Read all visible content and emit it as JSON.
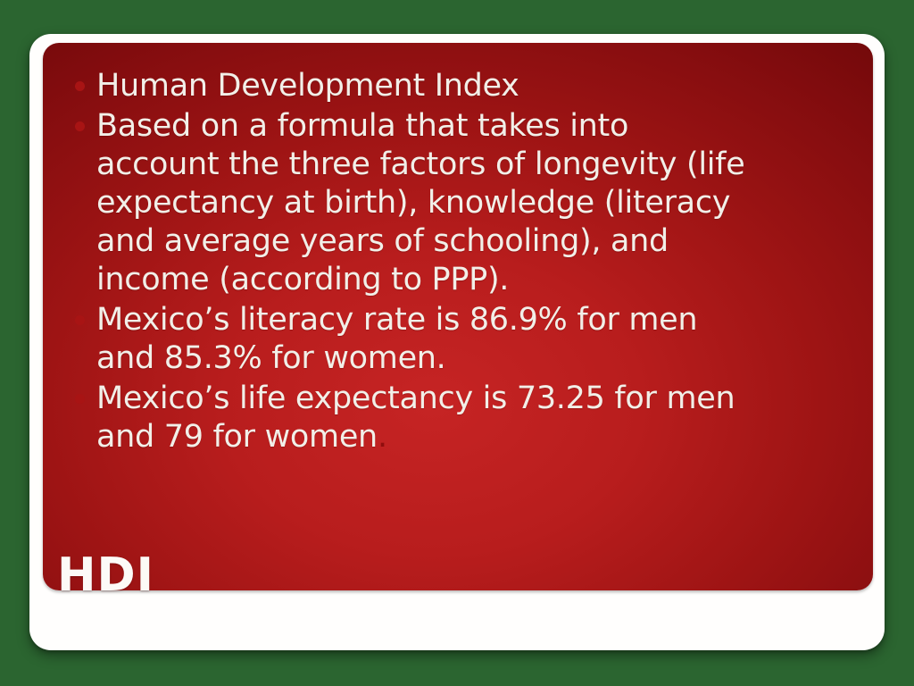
{
  "theme": {
    "green-bg": "#2b6530",
    "red-center": "#c62424",
    "red-edge": "#6f0809",
    "bullet-red": "#a81414",
    "text-white": "#f2efe8",
    "period-red": "#8f0d0d",
    "card-white": "#fffefd"
  },
  "slide": {
    "title": "HDI",
    "bullets": [
      {
        "lines": [
          "Human Development Index"
        ]
      },
      {
        "lines": [
          "Based on a formula that takes into",
          "account the three factors of longevity (life",
          "expectancy at birth), knowledge (literacy",
          "and average years of schooling), and",
          "income (according to PPP)."
        ]
      },
      {
        "lines": [
          "Mexico’s literacy rate is 86.9% for men",
          "and 85.3% for women."
        ]
      },
      {
        "lines": [
          "Mexico’s life expectancy is 73.25 for men",
          "and 79 for women"
        ],
        "suffix": "."
      }
    ]
  }
}
